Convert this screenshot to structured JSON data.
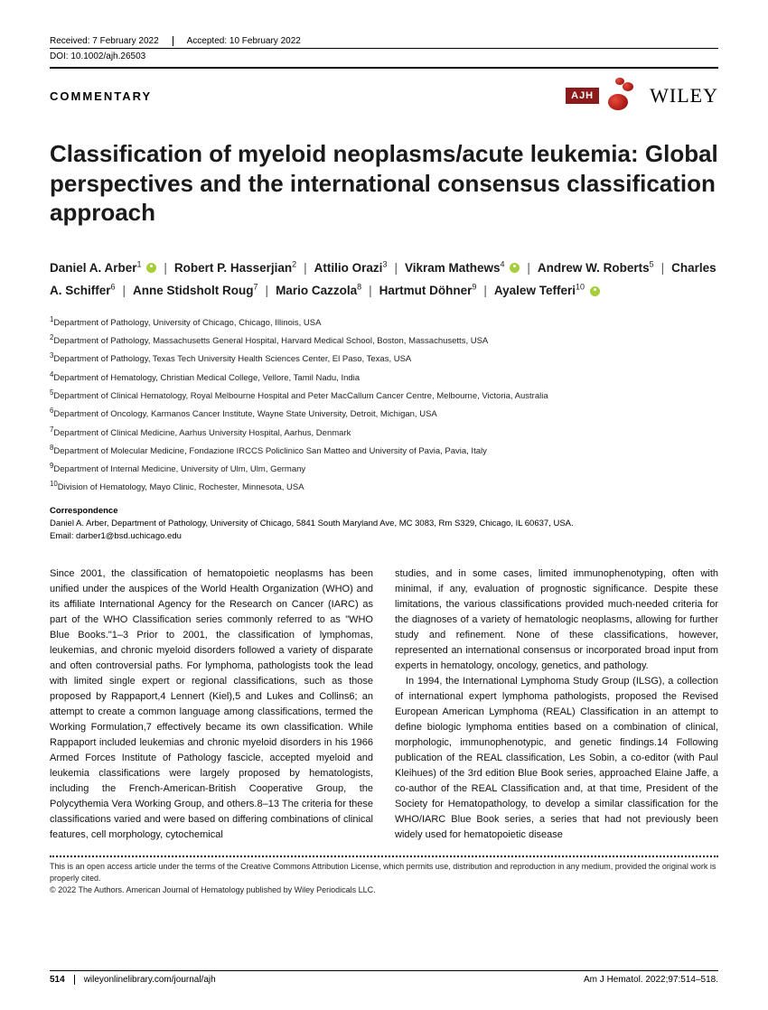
{
  "meta": {
    "received": "Received: 7 February 2022",
    "accepted": "Accepted: 10 February 2022",
    "doi": "DOI: 10.1002/ajh.26503"
  },
  "header": {
    "section": "COMMENTARY",
    "ajh": "AJH",
    "wiley": "WILEY"
  },
  "title": "Classification of myeloid neoplasms/acute leukemia: Global perspectives and the international consensus classification approach",
  "authors": [
    {
      "name": "Daniel A. Arber",
      "aff": "1",
      "orcid": true
    },
    {
      "name": "Robert P. Hasserjian",
      "aff": "2",
      "orcid": false
    },
    {
      "name": "Attilio Orazi",
      "aff": "3",
      "orcid": false
    },
    {
      "name": "Vikram Mathews",
      "aff": "4",
      "orcid": true
    },
    {
      "name": "Andrew W. Roberts",
      "aff": "5",
      "orcid": false
    },
    {
      "name": "Charles A. Schiffer",
      "aff": "6",
      "orcid": false
    },
    {
      "name": "Anne Stidsholt Roug",
      "aff": "7",
      "orcid": false
    },
    {
      "name": "Mario Cazzola",
      "aff": "8",
      "orcid": false
    },
    {
      "name": "Hartmut Döhner",
      "aff": "9",
      "orcid": false
    },
    {
      "name": "Ayalew Tefferi",
      "aff": "10",
      "orcid": true
    }
  ],
  "affiliations": [
    "1Department of Pathology, University of Chicago, Chicago, Illinois, USA",
    "2Department of Pathology, Massachusetts General Hospital, Harvard Medical School, Boston, Massachusetts, USA",
    "3Department of Pathology, Texas Tech University Health Sciences Center, El Paso, Texas, USA",
    "4Department of Hematology, Christian Medical College, Vellore, Tamil Nadu, India",
    "5Department of Clinical Hematology, Royal Melbourne Hospital and Peter MacCallum Cancer Centre, Melbourne, Victoria, Australia",
    "6Department of Oncology, Karmanos Cancer Institute, Wayne State University, Detroit, Michigan, USA",
    "7Department of Clinical Medicine, Aarhus University Hospital, Aarhus, Denmark",
    "8Department of Molecular Medicine, Fondazione IRCCS Policlinico San Matteo and University of Pavia, Pavia, Italy",
    "9Department of Internal Medicine, University of Ulm, Ulm, Germany",
    "10Division of Hematology, Mayo Clinic, Rochester, Minnesota, USA"
  ],
  "correspondence": {
    "hdr": "Correspondence",
    "text": "Daniel A. Arber, Department of Pathology, University of Chicago, 5841 South Maryland Ave, MC 3083, Rm S329, Chicago, IL 60637, USA.",
    "email": "Email: darber1@bsd.uchicago.edu"
  },
  "body": {
    "col1": "Since 2001, the classification of hematopoietic neoplasms has been unified under the auspices of the World Health Organization (WHO) and its affiliate International Agency for the Research on Cancer (IARC) as part of the WHO Classification series commonly referred to as \"WHO Blue Books.\"1–3 Prior to 2001, the classification of lymphomas, leukemias, and chronic myeloid disorders followed a variety of disparate and often controversial paths. For lymphoma, pathologists took the lead with limited single expert or regional classifications, such as those proposed by Rappaport,4 Lennert (Kiel),5 and Lukes and Collins6; an attempt to create a common language among classifications, termed the Working Formulation,7 effectively became its own classification. While Rappaport included leukemias and chronic myeloid disorders in his 1966 Armed Forces Institute of Pathology fascicle, accepted myeloid and leukemia classifications were largely proposed by hematologists, including the French-American-British Cooperative Group, the Polycythemia Vera Working Group, and others.8–13 The criteria for these classifications varied and were based on differing combinations of clinical features, cell morphology, cytochemical",
    "col2p1": "studies, and in some cases, limited immunophenotyping, often with minimal, if any, evaluation of prognostic significance. Despite these limitations, the various classifications provided much-needed criteria for the diagnoses of a variety of hematologic neoplasms, allowing for further study and refinement. None of these classifications, however, represented an international consensus or incorporated broad input from experts in hematology, oncology, genetics, and pathology.",
    "col2p2": "In 1994, the International Lymphoma Study Group (ILSG), a collection of international expert lymphoma pathologists, proposed the Revised European American Lymphoma (REAL) Classification in an attempt to define biologic lymphoma entities based on a combination of clinical, morphologic, immunophenotypic, and genetic findings.14 Following publication of the REAL classification, Les Sobin, a co-editor (with Paul Kleihues) of the 3rd edition Blue Book series, approached Elaine Jaffe, a co-author of the REAL Classification and, at that time, President of the Society for Hematopathology, to develop a similar classification for the WHO/IARC Blue Book series, a series that had not previously been widely used for hematopoietic disease"
  },
  "license": {
    "l1": "This is an open access article under the terms of the Creative Commons Attribution License, which permits use, distribution and reproduction in any medium, provided the original work is properly cited.",
    "l2": "© 2022 The Authors. American Journal of Hematology published by Wiley Periodicals LLC."
  },
  "footer": {
    "page": "514",
    "url": "wileyonlinelibrary.com/journal/ajh",
    "cite": "Am J Hematol. 2022;97:514–518."
  }
}
